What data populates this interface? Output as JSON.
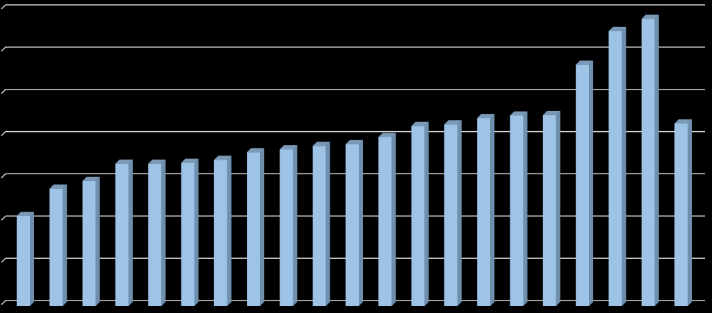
{
  "chart_data": {
    "type": "bar",
    "title": "",
    "xlabel": "",
    "ylabel": "",
    "categories": [
      "",
      "",
      "",
      "",
      "",
      "",
      "",
      "",
      "",
      "",
      "",
      "",
      "",
      "",
      "",
      "",
      "",
      "",
      "",
      "",
      ""
    ],
    "values": [
      2.0,
      2.65,
      2.83,
      3.24,
      3.24,
      3.26,
      3.33,
      3.51,
      3.58,
      3.66,
      3.7,
      3.87,
      4.13,
      4.17,
      4.32,
      4.38,
      4.39,
      5.58,
      6.38,
      6.67,
      4.19
    ],
    "ylim": [
      0,
      7
    ],
    "grid": true,
    "legend": "none",
    "colors": {
      "background": "#000000",
      "grid": "#d9d9d9",
      "bar_front": "#9dc3e6",
      "bar_side": "#6f8fae",
      "bar_top": "#7a9ab8"
    }
  }
}
